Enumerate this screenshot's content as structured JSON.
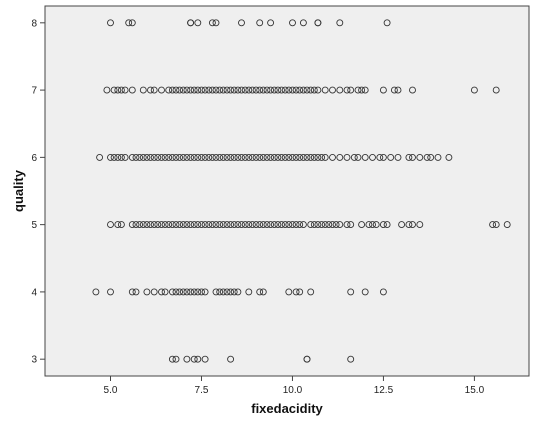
{
  "chart_data": {
    "type": "scatter",
    "title": "",
    "xlabel": "fixedacidity",
    "ylabel": "quality",
    "xlim": [
      3.2,
      16.5
    ],
    "ylim": [
      2.75,
      8.25
    ],
    "x_ticks": [
      5.0,
      7.5,
      10.0,
      12.5,
      15.0
    ],
    "x_tick_labels": [
      "5.0",
      "7.5",
      "10.0",
      "12.5",
      "15.0"
    ],
    "y_ticks": [
      3,
      4,
      5,
      6,
      7,
      8
    ],
    "y_tick_labels": [
      "3",
      "4",
      "5",
      "6",
      "7",
      "8"
    ],
    "grid": false,
    "colors": {
      "plot_background": "#efefef",
      "marker_stroke": "#333333",
      "frame": "#444444"
    },
    "series": [
      {
        "quality": 8,
        "x": [
          5.0,
          5.6,
          5.5,
          7.2,
          7.2,
          7.4,
          7.8,
          7.9,
          8.6,
          9.1,
          9.4,
          10.0,
          10.3,
          10.7,
          10.7,
          11.3,
          12.6
        ]
      },
      {
        "quality": 7,
        "x": [
          4.9,
          5.1,
          5.2,
          5.3,
          5.4,
          5.6,
          5.9,
          6.1,
          6.2,
          6.4,
          6.6,
          6.7,
          6.8,
          6.9,
          7.0,
          7.1,
          7.2,
          7.3,
          7.4,
          7.5,
          7.6,
          7.7,
          7.8,
          7.9,
          8.0,
          8.1,
          8.2,
          8.3,
          8.4,
          8.5,
          8.6,
          8.7,
          8.8,
          8.9,
          9.0,
          9.1,
          9.2,
          9.3,
          9.4,
          9.5,
          9.6,
          9.7,
          9.8,
          9.9,
          10.0,
          10.1,
          10.2,
          10.3,
          10.4,
          10.5,
          10.6,
          10.7,
          10.9,
          11.1,
          11.3,
          11.5,
          11.6,
          11.8,
          11.9,
          12.0,
          12.5,
          12.8,
          12.9,
          13.3,
          15.0,
          15.6
        ]
      },
      {
        "quality": 6,
        "x": [
          4.7,
          5.0,
          5.1,
          5.2,
          5.3,
          5.4,
          5.6,
          5.7,
          5.8,
          5.9,
          6.0,
          6.1,
          6.2,
          6.3,
          6.4,
          6.5,
          6.6,
          6.7,
          6.8,
          6.9,
          7.0,
          7.1,
          7.2,
          7.3,
          7.4,
          7.5,
          7.6,
          7.7,
          7.8,
          7.9,
          8.0,
          8.1,
          8.2,
          8.3,
          8.4,
          8.5,
          8.6,
          8.7,
          8.8,
          8.9,
          9.0,
          9.1,
          9.2,
          9.3,
          9.4,
          9.5,
          9.6,
          9.7,
          9.8,
          9.9,
          10.0,
          10.1,
          10.2,
          10.3,
          10.4,
          10.5,
          10.6,
          10.7,
          10.8,
          10.9,
          11.1,
          11.3,
          11.5,
          11.7,
          11.8,
          12.0,
          12.2,
          12.4,
          12.5,
          12.7,
          12.9,
          13.2,
          13.3,
          13.5,
          13.7,
          13.8,
          14.0,
          14.3
        ]
      },
      {
        "quality": 5,
        "x": [
          5.0,
          5.2,
          5.3,
          5.6,
          5.7,
          5.8,
          5.9,
          6.0,
          6.1,
          6.2,
          6.3,
          6.4,
          6.5,
          6.6,
          6.7,
          6.8,
          6.9,
          7.0,
          7.1,
          7.2,
          7.3,
          7.4,
          7.5,
          7.6,
          7.7,
          7.8,
          7.9,
          8.0,
          8.1,
          8.2,
          8.3,
          8.4,
          8.5,
          8.6,
          8.7,
          8.8,
          8.9,
          9.0,
          9.1,
          9.2,
          9.3,
          9.4,
          9.5,
          9.6,
          9.7,
          9.8,
          9.9,
          10.0,
          10.1,
          10.2,
          10.3,
          10.5,
          10.6,
          10.7,
          10.8,
          10.9,
          11.0,
          11.1,
          11.2,
          11.3,
          11.5,
          11.6,
          11.9,
          12.1,
          12.2,
          12.3,
          12.5,
          12.6,
          13.0,
          13.2,
          13.3,
          13.5,
          15.5,
          15.6,
          15.9
        ]
      },
      {
        "quality": 4,
        "x": [
          4.6,
          5.0,
          5.6,
          5.7,
          6.0,
          6.2,
          6.4,
          6.5,
          6.7,
          6.8,
          6.9,
          7.0,
          7.1,
          7.2,
          7.3,
          7.4,
          7.5,
          7.6,
          7.9,
          8.0,
          8.1,
          8.2,
          8.3,
          8.4,
          8.5,
          8.8,
          9.1,
          9.2,
          9.9,
          10.1,
          10.2,
          10.5,
          11.6,
          12.0,
          12.5
        ]
      },
      {
        "quality": 3,
        "x": [
          6.7,
          6.8,
          7.1,
          7.3,
          7.4,
          7.6,
          8.3,
          10.4,
          10.4,
          11.6
        ]
      }
    ]
  }
}
